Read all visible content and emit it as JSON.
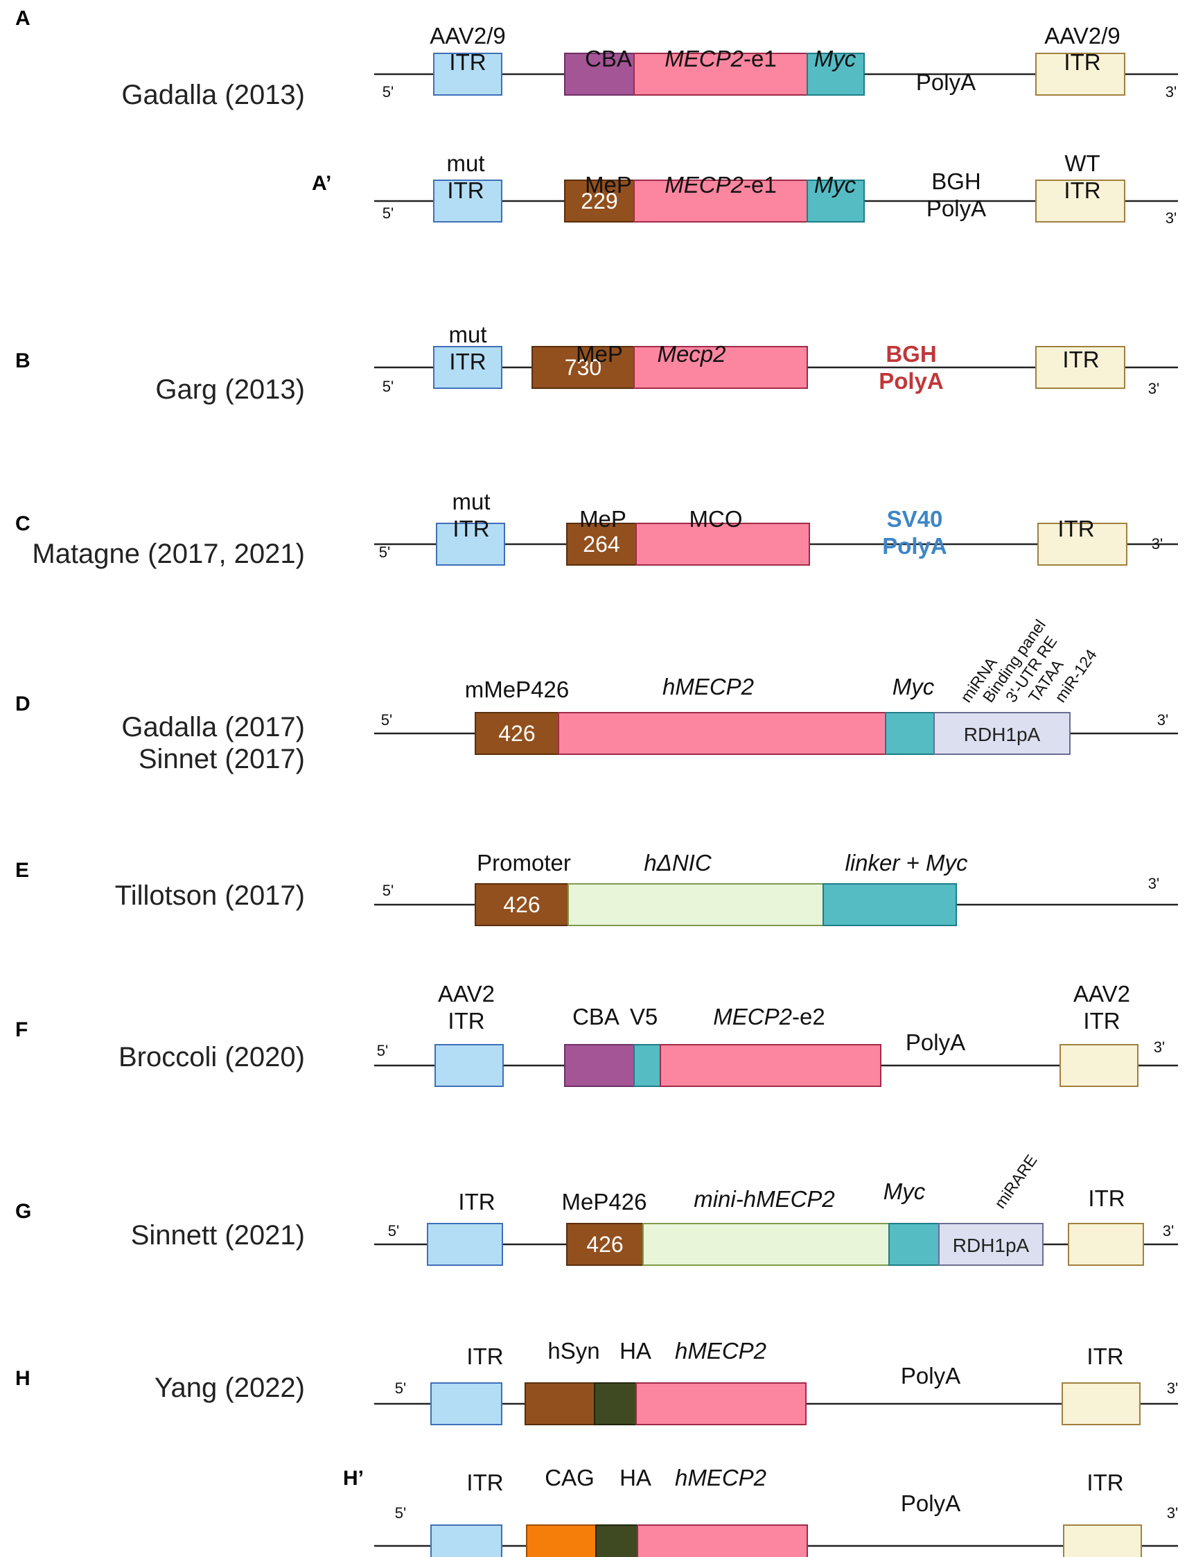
{
  "colors": {
    "itr_blue": "#b3ddf5",
    "itr_blue_stroke": "#3f6fb8",
    "itr_yellow": "#f8f3d6",
    "itr_yellow_stroke": "#a08040",
    "cba": "#a45596",
    "mecp2": "#fc86a0",
    "myc": "#55bcc4",
    "mep": "#92501e",
    "light_green": "#e8f5d8",
    "rdh": "#dcdff0",
    "dark_green": "#3f4a22",
    "cag": "#f57d0a",
    "red_text": "#c0373a",
    "blue_text": "#3d86c6"
  },
  "ends": {
    "five": "5'",
    "three": "3'"
  },
  "panels": [
    {
      "id": "A",
      "letter": "A",
      "author": [
        "Gadalla (2013)"
      ],
      "labels": [
        {
          "lines": [
            "AAV2/9",
            "ITR"
          ],
          "style": "normal"
        },
        {
          "lines": [
            "CBA"
          ],
          "style": "normal"
        },
        {
          "lines": [
            "MECP2",
            "-e1"
          ],
          "style": "mixed"
        },
        {
          "lines": [
            "Myc"
          ],
          "style": "italic"
        },
        {
          "lines": [
            "PolyA"
          ],
          "style": "normal"
        },
        {
          "lines": [
            "AAV2/9",
            "ITR"
          ],
          "style": "normal"
        }
      ]
    },
    {
      "id": "A2",
      "letter": "A’",
      "author": [],
      "labels": [
        {
          "lines": [
            "mut",
            "ITR"
          ],
          "style": "normal"
        },
        {
          "lines": [
            "MeP"
          ],
          "style": "normal"
        },
        {
          "lines": [
            "MECP2",
            "-e1"
          ],
          "style": "mixed"
        },
        {
          "lines": [
            "Myc"
          ],
          "style": "italic"
        },
        {
          "lines": [
            "BGH",
            "PolyA"
          ],
          "style": "normal"
        },
        {
          "lines": [
            "WT",
            "ITR"
          ],
          "style": "normal"
        }
      ],
      "box_text": [
        "229"
      ]
    },
    {
      "id": "B",
      "letter": "B",
      "author": [
        "Garg (2013)"
      ],
      "labels": [
        {
          "lines": [
            "mut",
            "ITR"
          ],
          "style": "normal"
        },
        {
          "lines": [
            "MeP"
          ],
          "style": "normal"
        },
        {
          "lines": [
            "Mecp2"
          ],
          "style": "italic"
        },
        {
          "lines": [
            "BGH",
            "PolyA"
          ],
          "style": "red"
        },
        {
          "lines": [
            "ITR"
          ],
          "style": "normal"
        }
      ],
      "box_text": [
        "730"
      ]
    },
    {
      "id": "C",
      "letter": "C",
      "author": [
        "Matagne (2017, 2021)"
      ],
      "labels": [
        {
          "lines": [
            "mut",
            "ITR"
          ],
          "style": "normal"
        },
        {
          "lines": [
            "MeP"
          ],
          "style": "normal"
        },
        {
          "lines": [
            "MCO"
          ],
          "style": "normal"
        },
        {
          "lines": [
            "SV40",
            "PolyA"
          ],
          "style": "blue"
        },
        {
          "lines": [
            "ITR"
          ],
          "style": "normal"
        }
      ],
      "box_text": [
        "264"
      ]
    },
    {
      "id": "D",
      "letter": "D",
      "author": [
        "Gadalla (2017)",
        "Sinnet (2017)"
      ],
      "labels": [
        {
          "lines": [
            "mMeP426"
          ],
          "style": "normal"
        },
        {
          "lines": [
            "hMECP2"
          ],
          "style": "italic"
        },
        {
          "lines": [
            "Myc"
          ],
          "style": "italic"
        }
      ],
      "rotated": [
        "miRNA",
        "Binding panel",
        "3'-UTR RE",
        "TATAA",
        "miR-124"
      ],
      "box_text": [
        "426",
        "RDH1pA"
      ]
    },
    {
      "id": "E",
      "letter": "E",
      "author": [
        "Tillotson (2017)"
      ],
      "labels": [
        {
          "lines": [
            "Promoter"
          ],
          "style": "normal"
        },
        {
          "lines": [
            "hΔNIC"
          ],
          "style": "italic"
        },
        {
          "lines": [
            "linker + Myc"
          ],
          "style": "italic"
        }
      ],
      "box_text": [
        "426"
      ]
    },
    {
      "id": "F",
      "letter": "F",
      "author": [
        "Broccoli (2020)"
      ],
      "labels": [
        {
          "lines": [
            "AAV2",
            "ITR"
          ],
          "style": "normal"
        },
        {
          "lines": [
            "CBA"
          ],
          "style": "normal"
        },
        {
          "lines": [
            "V5"
          ],
          "style": "normal"
        },
        {
          "lines": [
            "MECP2",
            "-e2"
          ],
          "style": "mixed"
        },
        {
          "lines": [
            "PolyA"
          ],
          "style": "normal"
        },
        {
          "lines": [
            "AAV2",
            "ITR"
          ],
          "style": "normal"
        }
      ]
    },
    {
      "id": "G",
      "letter": "G",
      "author": [
        "Sinnett (2021)"
      ],
      "labels": [
        {
          "lines": [
            "ITR"
          ],
          "style": "normal"
        },
        {
          "lines": [
            "MeP426"
          ],
          "style": "normal"
        },
        {
          "lines": [
            "mini-hMECP2"
          ],
          "style": "italic"
        },
        {
          "lines": [
            "Myc"
          ],
          "style": "italic"
        },
        {
          "lines": [
            "ITR"
          ],
          "style": "normal"
        }
      ],
      "rotated": [
        "miRARE"
      ],
      "box_text": [
        "426",
        "RDH1pA"
      ]
    },
    {
      "id": "H",
      "letter": "H",
      "author": [
        "Yang (2022)"
      ],
      "labels": [
        {
          "lines": [
            "ITR"
          ],
          "style": "normal"
        },
        {
          "lines": [
            "hSyn"
          ],
          "style": "normal"
        },
        {
          "lines": [
            "HA"
          ],
          "style": "normal"
        },
        {
          "lines": [
            "hMECP2"
          ],
          "style": "italic"
        },
        {
          "lines": [
            "PolyA"
          ],
          "style": "normal"
        },
        {
          "lines": [
            "ITR"
          ],
          "style": "normal"
        }
      ]
    },
    {
      "id": "H2",
      "letter": "H’",
      "author": [],
      "labels": [
        {
          "lines": [
            "ITR"
          ],
          "style": "normal"
        },
        {
          "lines": [
            "CAG"
          ],
          "style": "normal"
        },
        {
          "lines": [
            "HA"
          ],
          "style": "normal"
        },
        {
          "lines": [
            "hMECP2"
          ],
          "style": "italic"
        },
        {
          "lines": [
            "PolyA"
          ],
          "style": "normal"
        },
        {
          "lines": [
            "ITR"
          ],
          "style": "normal"
        }
      ]
    }
  ]
}
